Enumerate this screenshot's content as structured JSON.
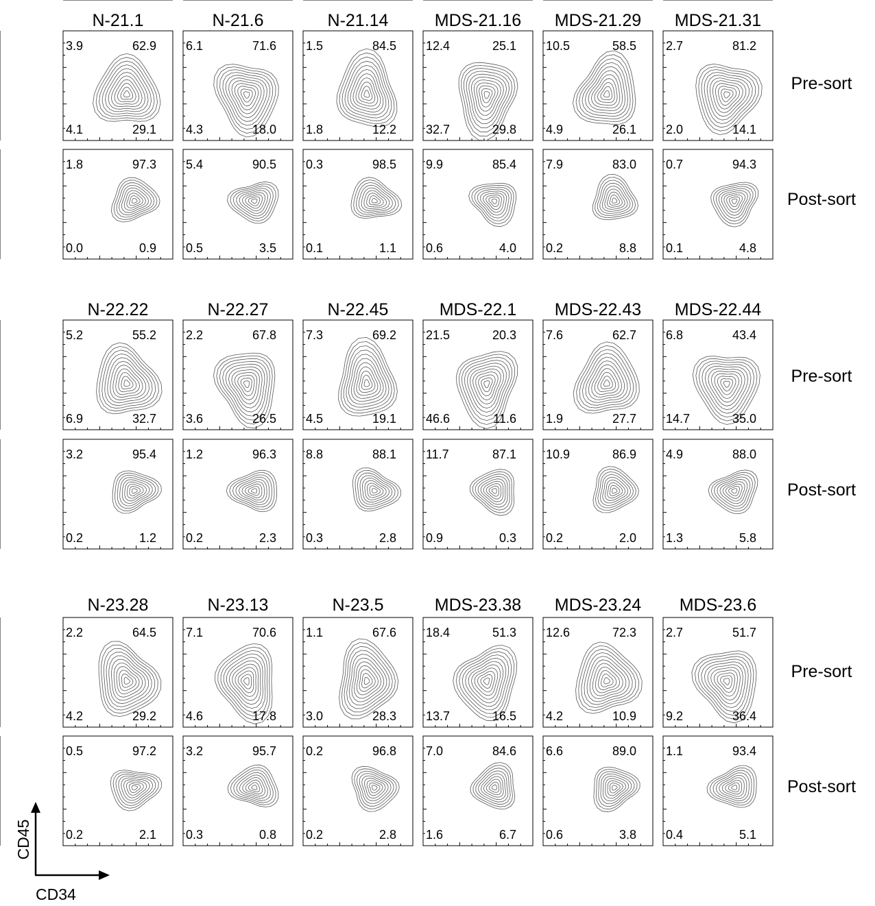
{
  "chart_data": {
    "type": "contour",
    "x_axis_label": "CD34",
    "y_axis_label": "CD45",
    "quadrant_order": [
      "upper-left",
      "upper-right",
      "lower-left",
      "lower-right"
    ],
    "groups": [
      {
        "samples": [
          "N-21.1",
          "N-21.6",
          "N-21.14",
          "MDS-21.16",
          "MDS-21.29",
          "MDS-21.31"
        ],
        "rows": [
          {
            "label": "Pre-sort",
            "values": [
              [
                "3.9",
                "62.9",
                "4.1",
                "29.1"
              ],
              [
                "6.1",
                "71.6",
                "4.3",
                "18.0"
              ],
              [
                "1.5",
                "84.5",
                "1.8",
                "12.2"
              ],
              [
                "12.4",
                "25.1",
                "32.7",
                "29.8"
              ],
              [
                "10.5",
                "58.5",
                "4.9",
                "26.1"
              ],
              [
                "2.7",
                "81.2",
                "2.0",
                "14.1"
              ]
            ]
          },
          {
            "label": "Post-sort",
            "values": [
              [
                "1.8",
                "97.3",
                "0.0",
                "0.9"
              ],
              [
                "5.4",
                "90.5",
                "0.5",
                "3.5"
              ],
              [
                "0.3",
                "98.5",
                "0.1",
                "1.1"
              ],
              [
                "9.9",
                "85.4",
                "0.6",
                "4.0"
              ],
              [
                "7.9",
                "83.0",
                "0.2",
                "8.8"
              ],
              [
                "0.7",
                "94.3",
                "0.1",
                "4.8"
              ]
            ]
          }
        ]
      },
      {
        "samples": [
          "N-22.22",
          "N-22.27",
          "N-22.45",
          "MDS-22.1",
          "MDS-22.43",
          "MDS-22.44"
        ],
        "rows": [
          {
            "label": "Pre-sort",
            "values": [
              [
                "5.2",
                "55.2",
                "6.9",
                "32.7"
              ],
              [
                "2.2",
                "67.8",
                "3.6",
                "26.5"
              ],
              [
                "7.3",
                "69.2",
                "4.5",
                "19.1"
              ],
              [
                "21.5",
                "20.3",
                "46.6",
                "11.6"
              ],
              [
                "7.6",
                "62.7",
                "1.9",
                "27.7"
              ],
              [
                "6.8",
                "43.4",
                "14.7",
                "35.0"
              ]
            ]
          },
          {
            "label": "Post-sort",
            "values": [
              [
                "3.2",
                "95.4",
                "0.2",
                "1.2"
              ],
              [
                "1.2",
                "96.3",
                "0.2",
                "2.3"
              ],
              [
                "8.8",
                "88.1",
                "0.3",
                "2.8"
              ],
              [
                "11.7",
                "87.1",
                "0.9",
                "0.3"
              ],
              [
                "10.9",
                "86.9",
                "0.2",
                "2.0"
              ],
              [
                "4.9",
                "88.0",
                "1.3",
                "5.8"
              ]
            ]
          }
        ]
      },
      {
        "samples": [
          "N-23.28",
          "N-23.13",
          "N-23.5",
          "MDS-23.38",
          "MDS-23.24",
          "MDS-23.6"
        ],
        "rows": [
          {
            "label": "Pre-sort",
            "values": [
              [
                "2.2",
                "64.5",
                "4.2",
                "29.2"
              ],
              [
                "7.1",
                "70.6",
                "4.6",
                "17.8"
              ],
              [
                "1.1",
                "67.6",
                "3.0",
                "28.3"
              ],
              [
                "18.4",
                "51.3",
                "13.7",
                "16.5"
              ],
              [
                "12.6",
                "72.3",
                "4.2",
                "10.9"
              ],
              [
                "2.7",
                "51.7",
                "9.2",
                "36.4"
              ]
            ]
          },
          {
            "label": "Post-sort",
            "values": [
              [
                "0.5",
                "97.2",
                "0.2",
                "2.1"
              ],
              [
                "3.2",
                "95.7",
                "0.3",
                "0.8"
              ],
              [
                "0.2",
                "96.8",
                "0.2",
                "2.8"
              ],
              [
                "7.0",
                "84.6",
                "1.6",
                "6.7"
              ],
              [
                "6.6",
                "89.0",
                "0.6",
                "3.8"
              ],
              [
                "1.1",
                "93.4",
                "0.4",
                "5.1"
              ]
            ]
          }
        ]
      }
    ]
  }
}
